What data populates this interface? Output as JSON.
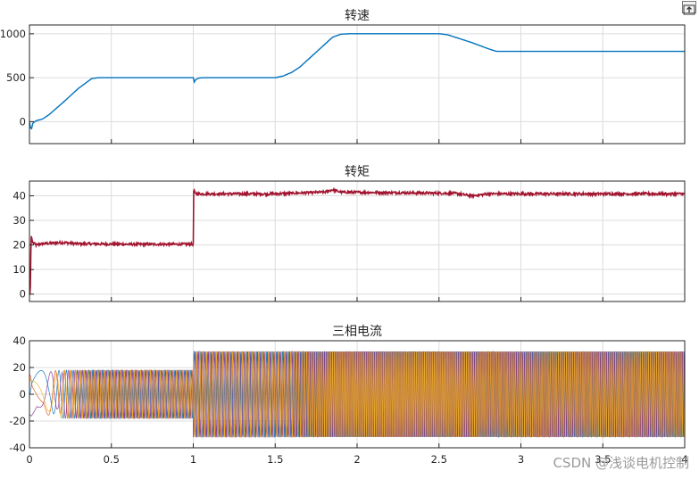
{
  "chart_data": [
    {
      "type": "line",
      "title": "转速",
      "xlabel": "",
      "ylabel": "",
      "xlim": [
        0,
        4
      ],
      "ylim": [
        -250,
        1100
      ],
      "yticks": [
        0,
        500,
        1000
      ],
      "grid": true,
      "series": [
        {
          "color": "#0072BD",
          "x": [
            0,
            0.01,
            0.02,
            0.04,
            0.08,
            0.12,
            0.2,
            0.3,
            0.38,
            0.42,
            1.0,
            1.003,
            1.01,
            1.03,
            1.06,
            1.5,
            1.55,
            1.6,
            1.65,
            1.85,
            1.9,
            1.95,
            2.5,
            2.55,
            2.6,
            2.7,
            2.8,
            2.85,
            4.0
          ],
          "y": [
            0,
            -110,
            -20,
            10,
            30,
            80,
            210,
            380,
            490,
            500,
            500,
            430,
            470,
            495,
            500,
            500,
            520,
            560,
            620,
            960,
            995,
            1000,
            1000,
            990,
            960,
            900,
            830,
            800,
            800
          ]
        }
      ]
    },
    {
      "type": "line",
      "title": "转矩",
      "xlabel": "",
      "ylabel": "",
      "xlim": [
        0,
        4
      ],
      "ylim": [
        -3,
        46
      ],
      "yticks": [
        0,
        10,
        20,
        30,
        40
      ],
      "grid": true,
      "series": [
        {
          "color": "#A2142F",
          "x": [
            0,
            0.005,
            0.01,
            0.02,
            0.04,
            0.08,
            0.2,
            0.3,
            0.6,
            1.0,
            1.003,
            1.01,
            1.02,
            1.05,
            1.5,
            1.8,
            1.85,
            1.9,
            2.6,
            2.7,
            2.8,
            4.0
          ],
          "y": [
            0,
            0,
            24,
            21,
            20,
            20.5,
            21,
            20.5,
            20.3,
            20.3,
            43,
            41,
            40.8,
            40.8,
            40.8,
            41.5,
            42.5,
            41.5,
            41,
            40,
            40.8,
            40.8
          ],
          "noise": 0.5
        }
      ]
    },
    {
      "type": "line",
      "title": "三相电流",
      "xlabel": "",
      "ylabel": "",
      "xlim": [
        0,
        4
      ],
      "ylim": [
        -40,
        40
      ],
      "yticks": [
        -40,
        -20,
        0,
        20,
        40
      ],
      "xticks": [
        "0",
        "0.5",
        "1",
        "1.5",
        "2",
        "2.5",
        "3",
        "3.5",
        "4"
      ],
      "grid": true,
      "amplitude_segments": [
        {
          "from": 0,
          "to": 1.0,
          "amplitude": 18
        },
        {
          "from": 1.0,
          "to": 4.0,
          "amplitude": 32
        }
      ],
      "series": [
        {
          "name": "",
          "color": "#0072BD"
        },
        {
          "name": "",
          "color": "#D95319"
        },
        {
          "name": "",
          "color": "#7E2F8E"
        },
        {
          "name": "",
          "color": "#EDB120"
        }
      ]
    }
  ],
  "watermark": "CSDN @浅谈电机控制",
  "toolbar": {
    "export_icon": "export-icon"
  }
}
